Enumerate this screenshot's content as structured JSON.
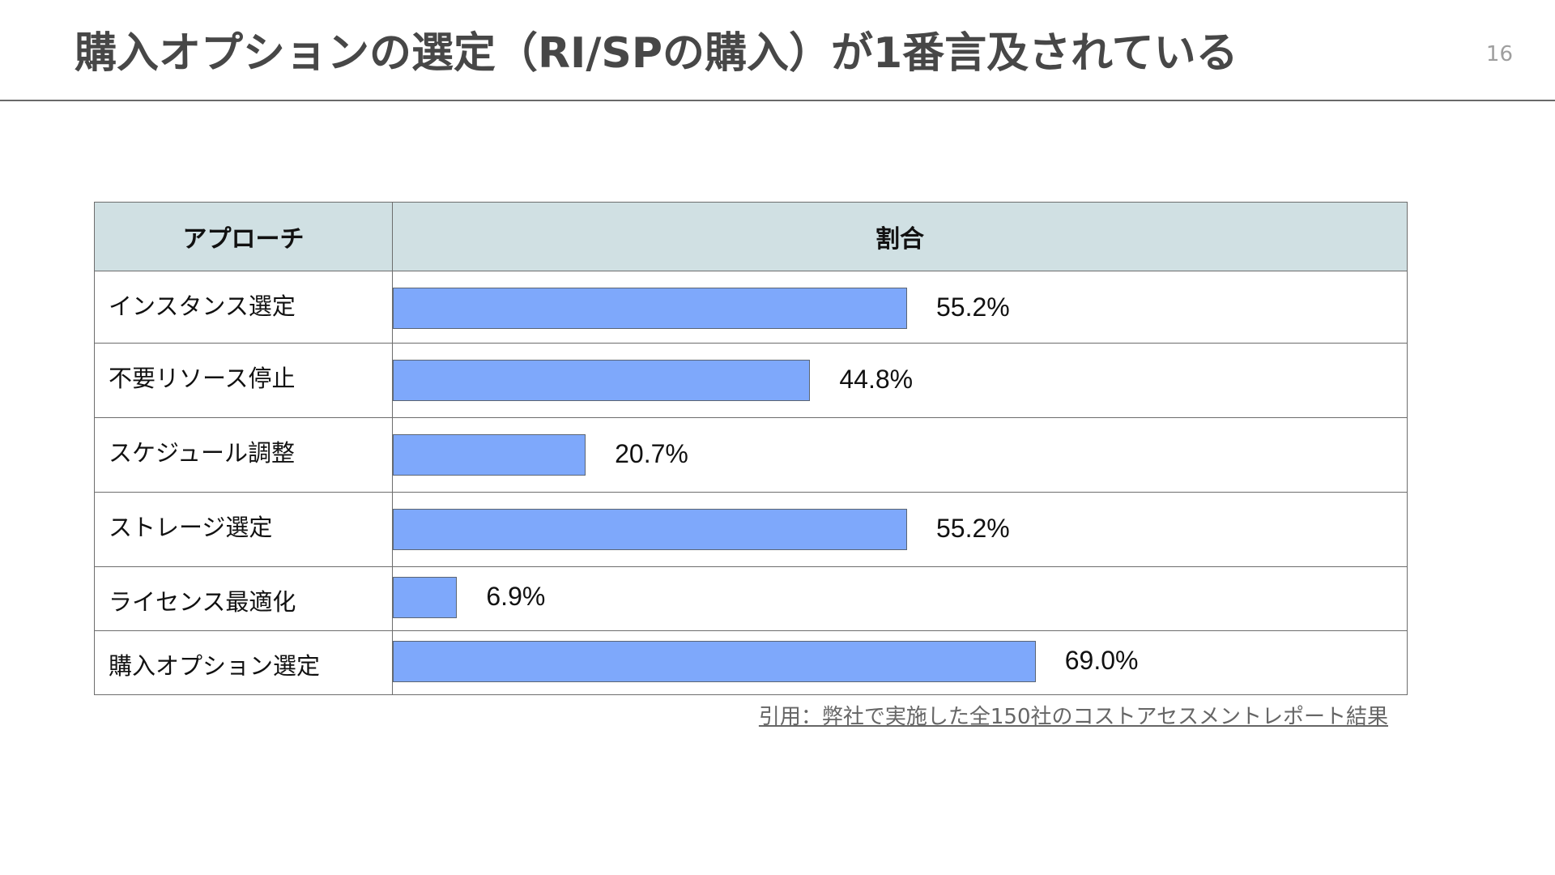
{
  "page": {
    "title": "購入オプションの選定（RI/SPの購入）が1番言及されている",
    "page_number": "16",
    "citation": "引用：弊社で実施した全150社のコストアセスメントレポート結果"
  },
  "colors": {
    "bar_fill": "#7ea8fb",
    "header_fill": "#d0e0e3",
    "title_text": "#474747"
  },
  "chart_data": {
    "type": "bar",
    "orientation": "horizontal",
    "column_headers": [
      "アプローチ",
      "割合"
    ],
    "categories": [
      "インスタンス選定",
      "不要リソース停止",
      "スケジュール調整",
      "ストレージ選定",
      "ライセンス最適化",
      "購入オプション選定"
    ],
    "values": [
      55.2,
      44.8,
      20.7,
      55.2,
      6.9,
      69.0
    ],
    "value_labels": [
      "55.2%",
      "44.8%",
      "20.7%",
      "55.2%",
      "6.9%",
      "69.0%"
    ],
    "unit": "%",
    "xlim": [
      0,
      100
    ],
    "grid": false,
    "legend": "none"
  }
}
